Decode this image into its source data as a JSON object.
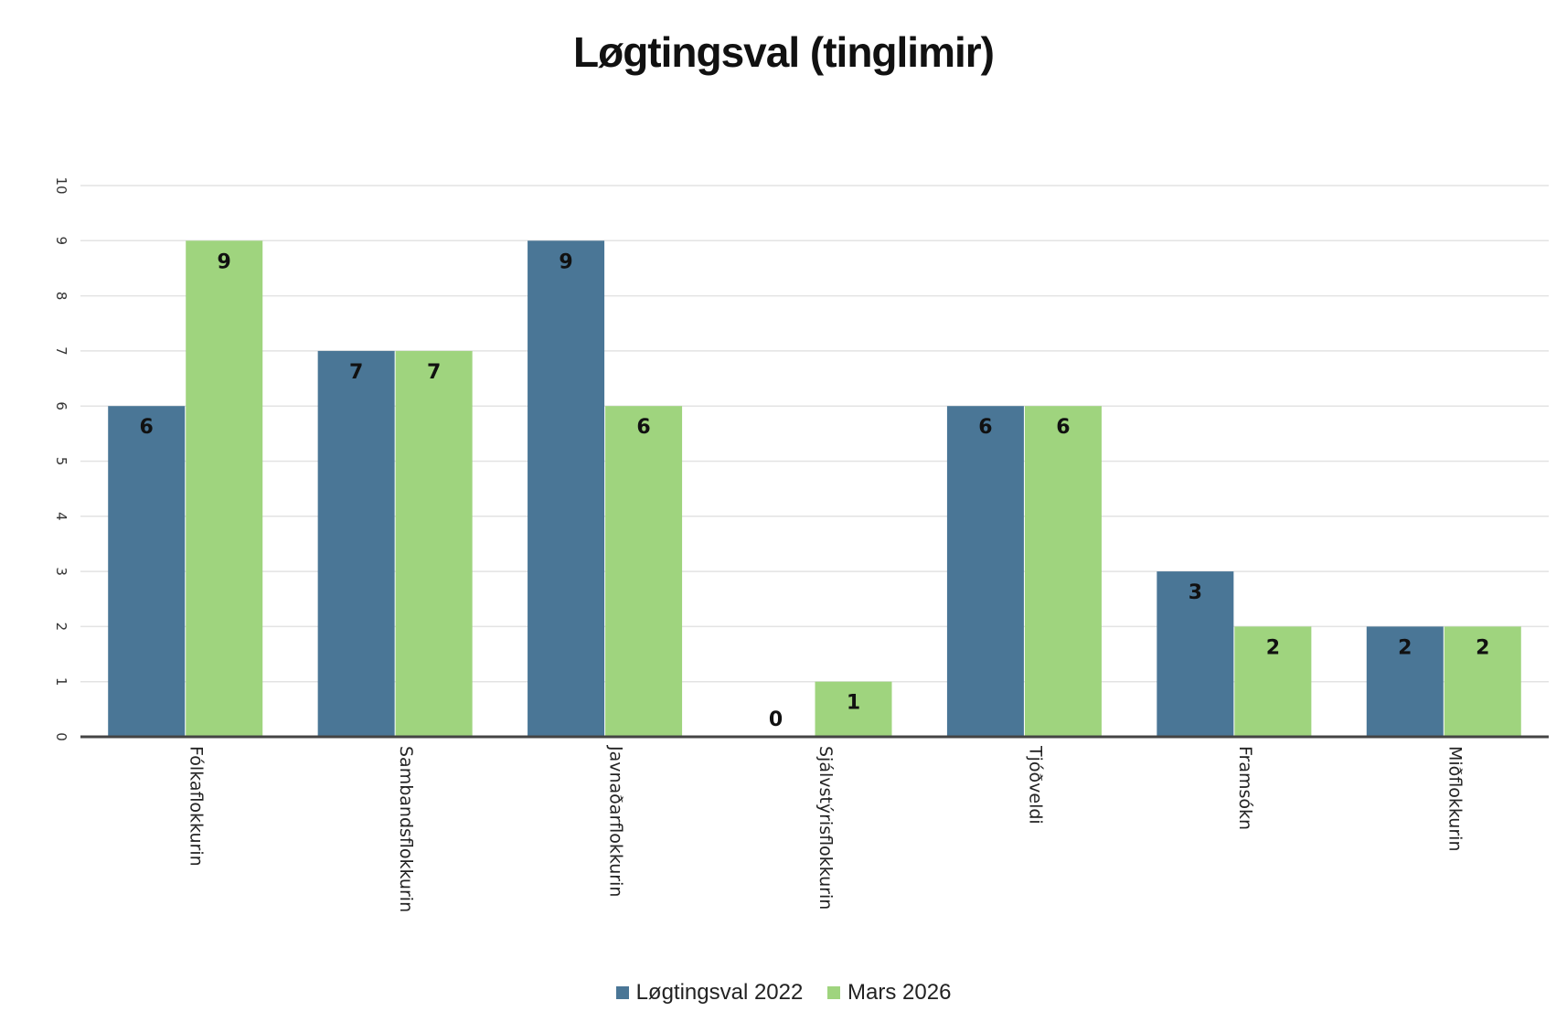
{
  "chart_data": {
    "type": "bar",
    "title": "Løgtingsval (tinglimir)",
    "categories": [
      "Fólkaflokkurin",
      "Sambandsflokkurin",
      "Javnaðarflokkurin",
      "Sjálvstýrisflokkurin",
      "Tjóðveldi",
      "Framsókn",
      "Miðflokkurin"
    ],
    "series": [
      {
        "name": "Løgtingsval 2022",
        "color": "#4a7696",
        "values": [
          6,
          7,
          9,
          0,
          6,
          3,
          2
        ]
      },
      {
        "name": "Mars 2026",
        "color": "#9fd47e",
        "values": [
          9,
          7,
          6,
          1,
          6,
          2,
          2
        ]
      }
    ],
    "ylim": [
      0,
      10
    ],
    "yticks": [
      0,
      1,
      2,
      3,
      4,
      5,
      6,
      7,
      8,
      9,
      10
    ],
    "grid": true,
    "legend_position": "bottom",
    "data_labels": true
  }
}
